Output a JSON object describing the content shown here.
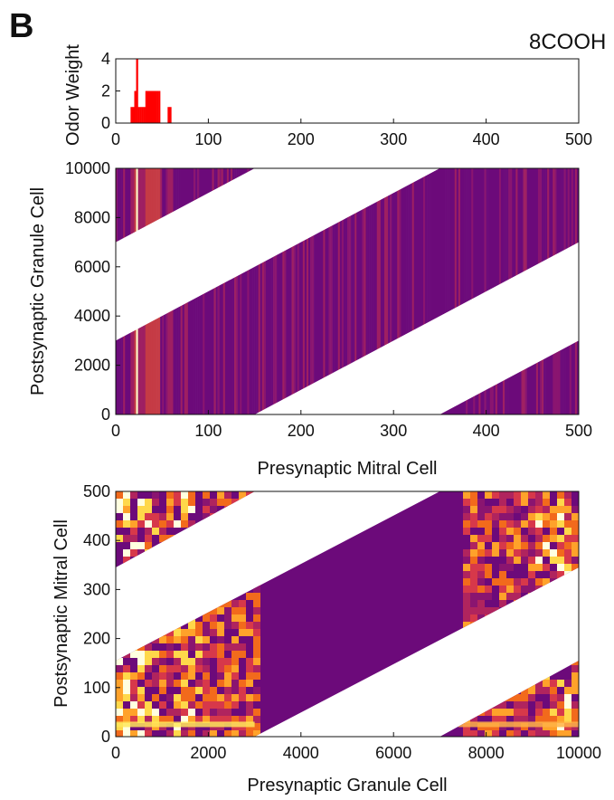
{
  "figure": {
    "panel_letter": "B",
    "odor_label": "8COOH"
  },
  "chart_data": [
    {
      "type": "bar",
      "ylabel": "Odor Weight",
      "xlim": [
        0,
        500
      ],
      "ylim": [
        0,
        4
      ],
      "xticks": [
        "0",
        "100",
        "200",
        "300",
        "400",
        "500"
      ],
      "yticks": [
        "0",
        "2",
        "4"
      ],
      "x": [
        16,
        18,
        20,
        22,
        24,
        26,
        28,
        30,
        32,
        34,
        36,
        38,
        40,
        42,
        44,
        46,
        56,
        58
      ],
      "values": [
        1,
        1,
        2,
        4,
        1,
        1,
        1,
        1,
        2,
        2,
        2,
        2,
        2,
        2,
        2,
        2,
        1,
        1
      ],
      "color": "#ff0000"
    },
    {
      "type": "heatmap",
      "xlabel": "Presynaptic Mitral Cell",
      "ylabel": "Postsynaptic Granule Cell",
      "xlim": [
        0,
        500
      ],
      "ylim": [
        0,
        10000
      ],
      "xticks": [
        "0",
        "100",
        "200",
        "300",
        "400",
        "500"
      ],
      "yticks": [
        "0",
        "2000",
        "4000",
        "6000",
        "8000",
        "10000"
      ],
      "band": "diagonal band with wraparound; granule center = 20 * mitral index",
      "colors": {
        "low": "#6c0a7a",
        "mid": "#c53b45",
        "high": "#ffffcc"
      }
    },
    {
      "type": "heatmap",
      "xlabel": "Presynaptic Granule Cell",
      "ylabel": "Postsynaptic Mitral Cell",
      "xlim": [
        0,
        10000
      ],
      "ylim": [
        0,
        500
      ],
      "xticks": [
        "0",
        "2000",
        "4000",
        "6000",
        "8000",
        "10000"
      ],
      "yticks": [
        "0",
        "100",
        "200",
        "300",
        "400",
        "500"
      ],
      "band": "diagonal band with wraparound; mitral center = granule index / 20",
      "colors": {
        "low": "#6c0a7a",
        "mid": "#f26a1c",
        "high": "#ffffe0"
      }
    }
  ]
}
